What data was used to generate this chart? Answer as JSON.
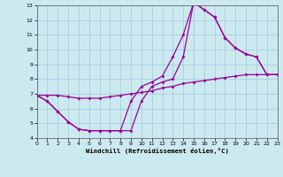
{
  "xlabel": "Windchill (Refroidissement éolien,°C)",
  "xlim": [
    0,
    23
  ],
  "ylim": [
    4,
    13
  ],
  "xticks": [
    0,
    1,
    2,
    3,
    4,
    5,
    6,
    7,
    8,
    9,
    10,
    11,
    12,
    13,
    14,
    15,
    16,
    17,
    18,
    19,
    20,
    21,
    22,
    23
  ],
  "yticks": [
    4,
    5,
    6,
    7,
    8,
    9,
    10,
    11,
    12,
    13
  ],
  "bg_color": "#cce9f0",
  "grid_color": "#a0c8d8",
  "line_color": "#990099",
  "series1_x": [
    0,
    1,
    2,
    3,
    4,
    5,
    6,
    7,
    8,
    9,
    10,
    11,
    12,
    13,
    14,
    15,
    16,
    17,
    18,
    19,
    20,
    21,
    22,
    23
  ],
  "series1_y": [
    6.9,
    6.5,
    5.8,
    5.1,
    4.6,
    4.5,
    4.5,
    4.5,
    4.5,
    6.5,
    7.5,
    7.8,
    8.2,
    9.5,
    11.0,
    13.2,
    12.7,
    12.2,
    10.8,
    10.1,
    9.7,
    9.5,
    8.3,
    8.3
  ],
  "series2_x": [
    0,
    1,
    2,
    3,
    4,
    5,
    6,
    7,
    8,
    9,
    10,
    11,
    12,
    13,
    14,
    15,
    16,
    17,
    18,
    19,
    20,
    21,
    22,
    23
  ],
  "series2_y": [
    6.9,
    6.5,
    5.8,
    5.1,
    4.6,
    4.5,
    4.5,
    4.5,
    4.5,
    4.5,
    6.5,
    7.5,
    7.8,
    8.0,
    9.5,
    13.2,
    12.7,
    12.2,
    10.8,
    10.1,
    9.7,
    9.5,
    8.3,
    8.3
  ],
  "series3_x": [
    0,
    1,
    2,
    3,
    4,
    5,
    6,
    7,
    8,
    9,
    10,
    11,
    12,
    13,
    14,
    15,
    16,
    17,
    18,
    19,
    20,
    21,
    22,
    23
  ],
  "series3_y": [
    6.9,
    6.9,
    6.9,
    6.8,
    6.7,
    6.7,
    6.7,
    6.8,
    6.9,
    7.0,
    7.1,
    7.2,
    7.4,
    7.5,
    7.7,
    7.8,
    7.9,
    8.0,
    8.1,
    8.2,
    8.3,
    8.3,
    8.3,
    8.3
  ]
}
